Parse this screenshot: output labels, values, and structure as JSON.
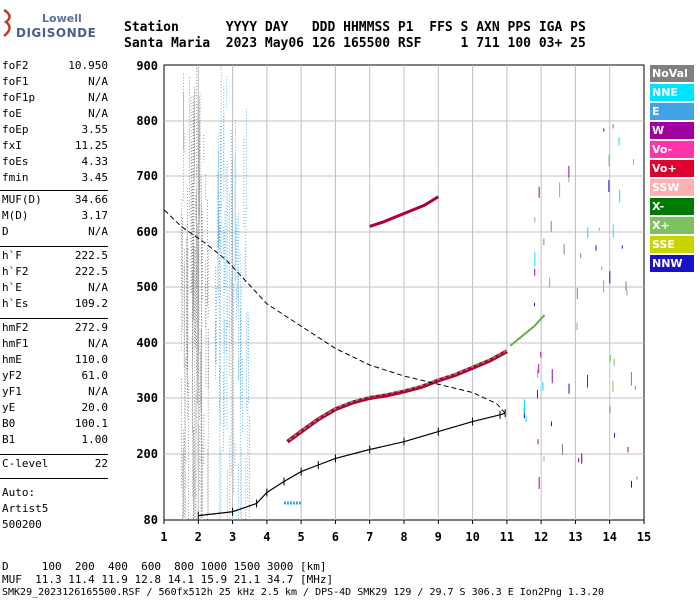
{
  "logo": {
    "brand": "Lowell",
    "product": "DIGISONDE"
  },
  "header": {
    "line1": "Station      YYYY DAY   DDD HHMMSS P1  FFS S AXN PPS IGA PS",
    "line2": "Santa Maria  2023 May06 126 165500 RSF     1 711 100 03+ 25"
  },
  "params": [
    {
      "label": "foF2",
      "value": "10.950"
    },
    {
      "label": "foF1",
      "value": "N/A"
    },
    {
      "label": "foF1p",
      "value": "N/A"
    },
    {
      "label": "foE",
      "value": "N/A"
    },
    {
      "label": "foEp",
      "value": "3.55"
    },
    {
      "label": "fxI",
      "value": "11.25"
    },
    {
      "label": "foEs",
      "value": "4.33"
    },
    {
      "label": "fmin",
      "value": "3.45"
    },
    {
      "label": "MUF(D)",
      "value": "34.66"
    },
    {
      "label": "M(D)",
      "value": "3.17"
    },
    {
      "label": "D",
      "value": "N/A"
    },
    {
      "label": "h`F",
      "value": "222.5"
    },
    {
      "label": "h`F2",
      "value": "222.5"
    },
    {
      "label": "h`E",
      "value": "N/A"
    },
    {
      "label": "h`Es",
      "value": "109.2"
    },
    {
      "label": "hmF2",
      "value": "272.9"
    },
    {
      "label": "hmF1",
      "value": "N/A"
    },
    {
      "label": "hmE",
      "value": "110.0"
    },
    {
      "label": "yF2",
      "value": "61.0"
    },
    {
      "label": "yF1",
      "value": "N/A"
    },
    {
      "label": "yE",
      "value": "20.0"
    },
    {
      "label": "B0",
      "value": "100.1"
    },
    {
      "label": "B1",
      "value": "1.00"
    },
    {
      "label": "C-level",
      "value": "22"
    }
  ],
  "autoscale": {
    "line1": "Auto:",
    "line2": "Artist5",
    "line3": "500200"
  },
  "legend": [
    {
      "label": "NoVal",
      "color": "#808080"
    },
    {
      "label": "NNE",
      "color": "#00e5ff"
    },
    {
      "label": "E",
      "color": "#3fa3e6"
    },
    {
      "label": "W",
      "color": "#a000a0"
    },
    {
      "label": "Vo-",
      "color": "#ff33aa"
    },
    {
      "label": "Vo+",
      "color": "#e0002e"
    },
    {
      "label": "SSW",
      "color": "#ffb0b0"
    },
    {
      "label": "X-",
      "color": "#007a00"
    },
    {
      "label": "X+",
      "color": "#7fc060"
    },
    {
      "label": "SSE",
      "color": "#c8d400"
    },
    {
      "label": "NNW",
      "color": "#1a10c8"
    }
  ],
  "axes": {
    "x_ticks": [
      "1",
      "2",
      "3",
      "4",
      "5",
      "6",
      "7",
      "8",
      "9",
      "10",
      "11",
      "12",
      "13",
      "14",
      "15"
    ],
    "y_ticks": [
      "80",
      "200",
      "300",
      "400",
      "500",
      "600",
      "700",
      "800",
      "900"
    ]
  },
  "bottom": {
    "line1": "D     100  200  400  600  800 1000 1500 3000 [km]",
    "line2": "MUF  11.3 11.4 11.9 12.8 14.1 15.9 21.1 34.7 [MHz]",
    "line3": "SMK29_2023126165500.RSF / 560fx512h 25 kHz 2.5 km / DPS-4D SMK29 129 / 29.7 S 306.3 E Ion2Png 1.3.20"
  },
  "colors": {
    "profile": "#000000",
    "trace_o": "#b0003a",
    "trace_x": "#6aa84f",
    "grid": "#c0c0c0"
  }
}
